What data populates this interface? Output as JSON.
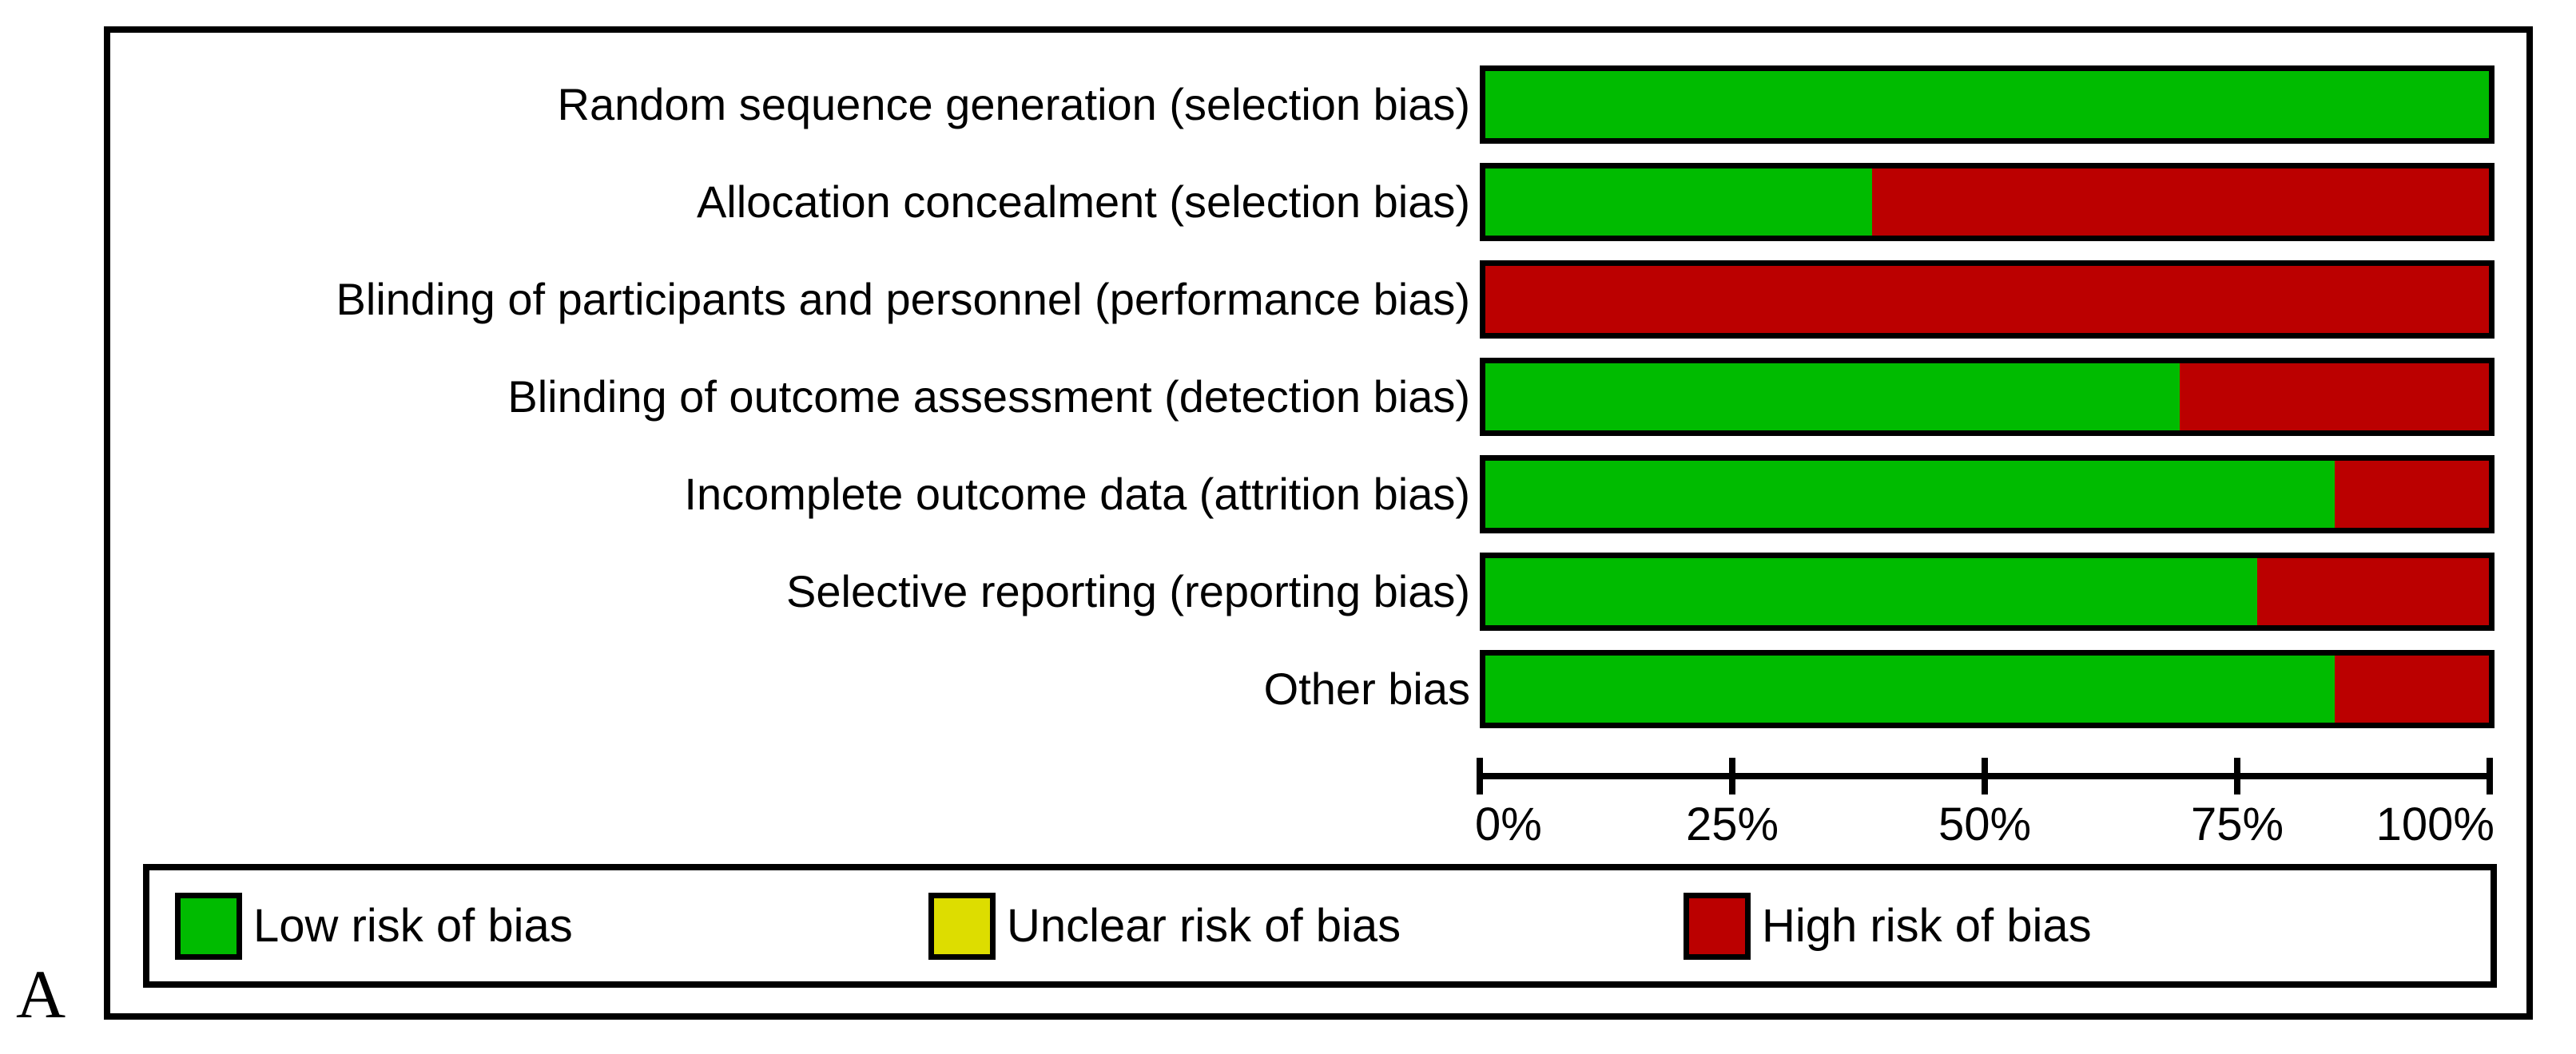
{
  "panel_label": "A",
  "colors": {
    "low": "#00BB00",
    "unclear": "#DDDD00",
    "high": "#BB0000",
    "frame": "#000000",
    "background": "#FFFFFF"
  },
  "chart_data": {
    "type": "bar",
    "orientation": "horizontal_stacked",
    "title": "",
    "xlabel": "",
    "ylabel": "",
    "xlim": [
      0,
      100
    ],
    "grid": false,
    "legend_position": "bottom",
    "categories": [
      "Random sequence generation (selection bias)",
      "Allocation concealment (selection bias)",
      "Blinding of participants and personnel (performance bias)",
      "Blinding of outcome assessment (detection bias)",
      "Incomplete outcome data (attrition bias)",
      "Selective reporting (reporting bias)",
      "Other bias"
    ],
    "series": [
      {
        "key": "low",
        "name": "Low risk of bias",
        "color": "#00BB00",
        "values": [
          100,
          38.5,
          0,
          69.2,
          84.6,
          76.9,
          84.6
        ]
      },
      {
        "key": "unclear",
        "name": "Unclear risk of bias",
        "color": "#DDDD00",
        "values": [
          0,
          0,
          0,
          0,
          0,
          0,
          0
        ]
      },
      {
        "key": "high",
        "name": "High risk of bias",
        "color": "#BB0000",
        "values": [
          0,
          61.5,
          100,
          30.8,
          15.4,
          23.1,
          15.4
        ]
      }
    ],
    "x_ticks": [
      "0%",
      "25%",
      "50%",
      "75%",
      "100%"
    ]
  },
  "legend": {
    "items": [
      {
        "key": "low",
        "label": "Low risk of bias",
        "color": "#00BB00"
      },
      {
        "key": "unclear",
        "label": "Unclear risk of bias",
        "color": "#DDDD00"
      },
      {
        "key": "high",
        "label": "High risk of bias",
        "color": "#BB0000"
      }
    ]
  }
}
